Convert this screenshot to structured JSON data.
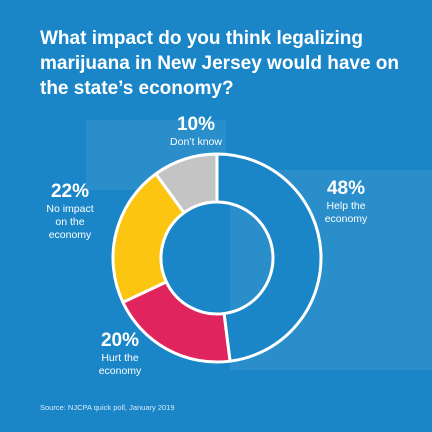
{
  "title": "What impact do you think legalizing marijuana in New Jersey would have on the state’s economy?",
  "colors": {
    "background": "#1a86c8",
    "help": "#1a86c8",
    "hurt": "#e0245e",
    "no_impact": "#fbc512",
    "dont_know": "#c4c4c4",
    "stroke": "#ffffff"
  },
  "chart_data": {
    "type": "pie",
    "style": "donut",
    "title": "What impact do you think legalizing marijuana in New Jersey would have on the state’s economy?",
    "categories": [
      "Help the economy",
      "Hurt the economy",
      "No impact on the economy",
      "Don’t know"
    ],
    "values": [
      48,
      20,
      22,
      10
    ],
    "unit": "%",
    "slices": [
      {
        "key": "help",
        "pct": "48%",
        "label": "Help the\neconomy",
        "value": 48
      },
      {
        "key": "hurt",
        "pct": "20%",
        "label": "Hurt the\neconomy",
        "value": 20
      },
      {
        "key": "no_impact",
        "pct": "22%",
        "label": "No impact\non the\neconomy",
        "value": 22
      },
      {
        "key": "dont_know",
        "pct": "10%",
        "label": "Don’t know",
        "value": 10
      }
    ]
  },
  "source": "Source: NJCPA quick poll, January 2019"
}
